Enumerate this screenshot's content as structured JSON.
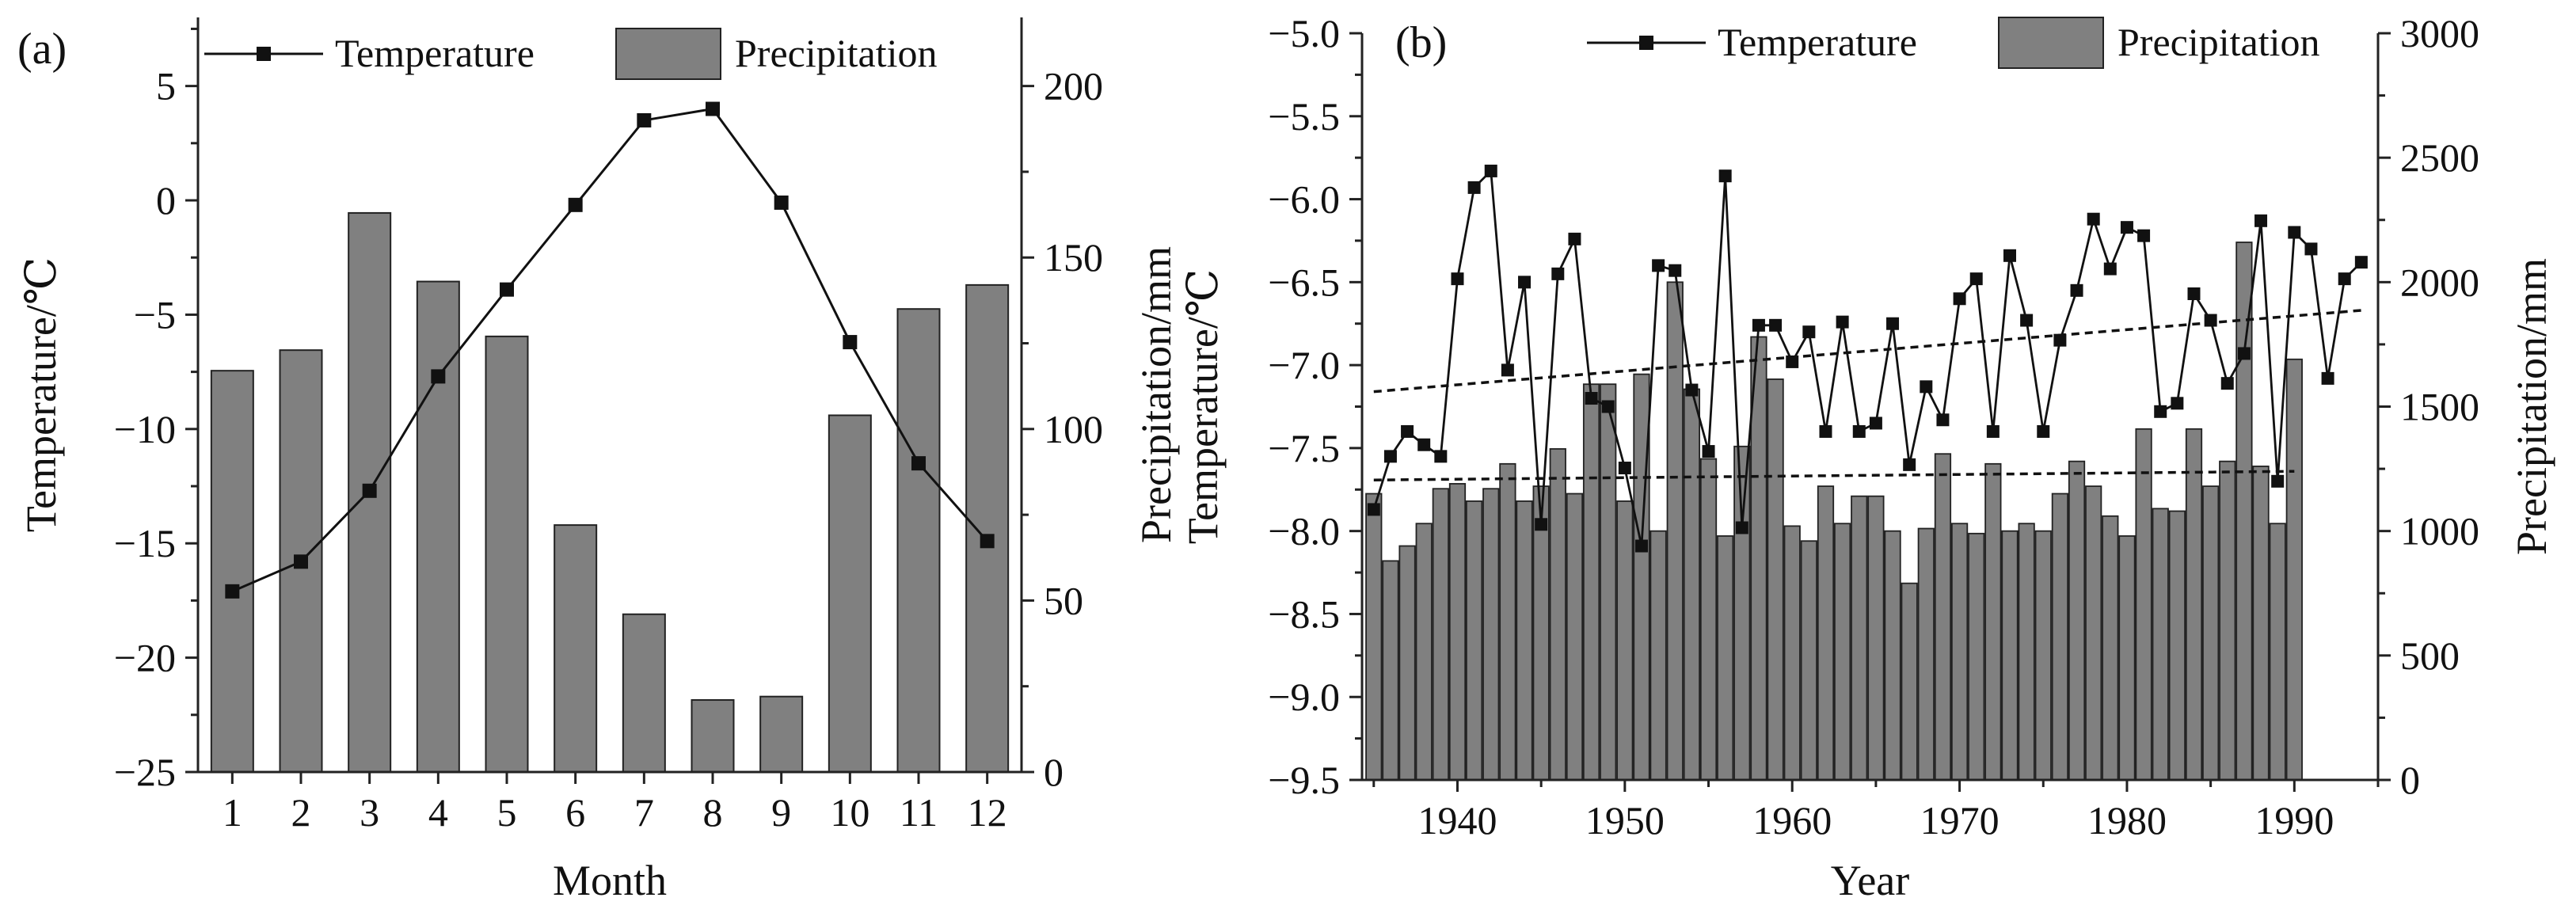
{
  "chart_data": [
    {
      "panel": "(a)",
      "type": "bar+line",
      "xlabel": "Month",
      "ylabel_left": "Temperature/℃",
      "ylabel_right": "Precipitation/mm",
      "categories": [
        "1",
        "2",
        "3",
        "4",
        "5",
        "6",
        "7",
        "8",
        "9",
        "10",
        "11",
        "12"
      ],
      "ylim_left": [
        -25,
        8
      ],
      "yticks_left": [
        -25,
        -20,
        -15,
        -10,
        -5,
        0,
        5
      ],
      "ylim_right": [
        0,
        220
      ],
      "yticks_right": [
        0,
        50,
        100,
        150,
        200
      ],
      "legend": [
        "Temperature",
        "Precipitation"
      ],
      "series": [
        {
          "name": "Temperature",
          "axis": "left",
          "type": "line",
          "values": [
            -17.1,
            -15.8,
            -12.7,
            -7.7,
            -3.9,
            -0.2,
            3.5,
            4.0,
            -0.1,
            -6.2,
            -11.5,
            -14.9
          ]
        },
        {
          "name": "Precipitation",
          "axis": "right",
          "type": "bar",
          "values": [
            117,
            123,
            163,
            143,
            127,
            72,
            46,
            21,
            22,
            104,
            135,
            142
          ]
        }
      ]
    },
    {
      "panel": "(b)",
      "type": "bar+line",
      "xlabel": "Year",
      "ylabel_left": "Temperature/℃",
      "ylabel_right": "Precipitation/mm",
      "xlim": [
        1934.3,
        1995.0
      ],
      "xticks": [
        1940,
        1950,
        1960,
        1970,
        1980,
        1990
      ],
      "ylim_left": [
        -9.5,
        -5.0
      ],
      "yticks_left": [
        -9.5,
        -9.0,
        -8.5,
        -8.0,
        -7.5,
        -7.0,
        -6.5,
        -6.0,
        -5.5,
        -5.0
      ],
      "ylim_right": [
        0,
        3000
      ],
      "yticks_right": [
        0,
        500,
        1000,
        1500,
        2000,
        2500,
        3000
      ],
      "legend": [
        "Temperature",
        "Precipitation"
      ],
      "series": [
        {
          "name": "Temperature",
          "axis": "left",
          "type": "line",
          "x": [
            1935,
            1936,
            1937,
            1938,
            1939,
            1940,
            1941,
            1942,
            1943,
            1944,
            1945,
            1946,
            1947,
            1948,
            1949,
            1950,
            1951,
            1952,
            1953,
            1954,
            1955,
            1956,
            1957,
            1958,
            1959,
            1960,
            1961,
            1962,
            1963,
            1964,
            1965,
            1966,
            1967,
            1968,
            1969,
            1970,
            1971,
            1972,
            1973,
            1974,
            1975,
            1976,
            1977,
            1978,
            1979,
            1980,
            1981,
            1982,
            1983,
            1984,
            1985,
            1986,
            1987,
            1988,
            1989,
            1990,
            1991,
            1992,
            1993,
            1994
          ],
          "values": [
            -7.87,
            -7.55,
            -7.4,
            -7.48,
            -7.55,
            -6.48,
            -5.93,
            -5.83,
            -7.03,
            -6.5,
            -7.96,
            -6.45,
            -6.24,
            -7.2,
            -7.25,
            -7.62,
            -8.09,
            -6.4,
            -6.43,
            -7.15,
            -7.52,
            -5.86,
            -7.98,
            -6.76,
            -6.76,
            -6.98,
            -6.8,
            -7.4,
            -6.74,
            -7.4,
            -7.35,
            -6.75,
            -7.6,
            -7.13,
            -7.33,
            -6.6,
            -6.48,
            -7.4,
            -6.34,
            -6.73,
            -7.4,
            -6.85,
            -6.55,
            -6.12,
            -6.42,
            -6.17,
            -6.22,
            -7.28,
            -7.23,
            -6.57,
            -6.73,
            -7.11,
            -6.93,
            -6.13,
            -7.7,
            -6.2,
            -6.3,
            -7.08,
            -6.48,
            -6.38
          ]
        },
        {
          "name": "Precipitation",
          "axis": "right",
          "type": "bar",
          "x": [
            1935,
            1936,
            1937,
            1938,
            1939,
            1940,
            1941,
            1942,
            1943,
            1944,
            1945,
            1946,
            1947,
            1948,
            1949,
            1950,
            1951,
            1952,
            1953,
            1954,
            1955,
            1956,
            1957,
            1958,
            1959,
            1960,
            1961,
            1962,
            1963,
            1964,
            1965,
            1966,
            1967,
            1968,
            1969,
            1970,
            1971,
            1972,
            1973,
            1974,
            1975,
            1976,
            1977,
            1978,
            1979,
            1980,
            1981,
            1982,
            1983,
            1984,
            1985,
            1986,
            1987,
            1988,
            1989,
            1990
          ],
          "values": [
            1150,
            880,
            940,
            1030,
            1170,
            1190,
            1120,
            1170,
            1270,
            1120,
            1180,
            1330,
            1150,
            1590,
            1590,
            1120,
            1630,
            1000,
            2000,
            1570,
            1290,
            980,
            1340,
            1780,
            1610,
            1020,
            960,
            1180,
            1030,
            1140,
            1140,
            1000,
            790,
            1010,
            1310,
            1030,
            990,
            1270,
            1000,
            1030,
            1000,
            1150,
            1280,
            1180,
            1060,
            980,
            1410,
            1090,
            1080,
            1410,
            1180,
            1280,
            2160,
            1260,
            1030,
            1690
          ]
        },
        {
          "name": "Temperature trend",
          "axis": "left",
          "type": "dashed-line",
          "x": [
            1935,
            1994
          ],
          "values": [
            -7.16,
            -6.67
          ]
        },
        {
          "name": "Precipitation trend",
          "axis": "right",
          "type": "dashed-line",
          "x": [
            1935,
            1990
          ],
          "values": [
            1205,
            1240
          ]
        }
      ]
    }
  ]
}
